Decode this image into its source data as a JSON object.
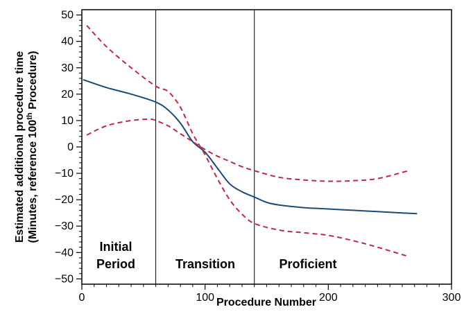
{
  "chart_data": {
    "type": "line",
    "xlabel": "Procedure Number",
    "ylabel_line1": "Estimated additional procedure time",
    "ylabel_line2_prefix": "(Minutes, reference 100",
    "ylabel_line2_sup": "th",
    "ylabel_line2_suffix": " Procedure)",
    "xlim": [
      0,
      300
    ],
    "ylim": [
      -52,
      52
    ],
    "x_ticks": [
      0,
      100,
      200,
      300
    ],
    "y_ticks": [
      50,
      40,
      30,
      20,
      10,
      0,
      -10,
      -20,
      -30,
      -40,
      -50
    ],
    "grid": false,
    "vertical_lines": [
      60,
      140
    ],
    "regions": [
      {
        "label": "Initial",
        "label2": "Period"
      },
      {
        "label": "Transition"
      },
      {
        "label": "Proficient"
      }
    ],
    "series": [
      {
        "style": "solid",
        "color": "#1a4a78",
        "x": [
          1,
          20,
          40,
          60,
          70,
          80,
          90,
          100,
          110,
          120,
          130,
          140,
          150,
          160,
          180,
          200,
          220,
          240,
          260,
          272
        ],
        "y": [
          25.5,
          22.5,
          20,
          17,
          14,
          9,
          2,
          -2,
          -8,
          -14,
          -17,
          -19,
          -21,
          -22,
          -23,
          -23.5,
          -24,
          -24.5,
          -25,
          -25.3
        ]
      },
      {
        "style": "dashed",
        "color": "#c0264a",
        "x": [
          4,
          20,
          40,
          60,
          70,
          80,
          90,
          100,
          110,
          120,
          130,
          140,
          160,
          180,
          200,
          220,
          240,
          265
        ],
        "y": [
          46,
          38,
          30,
          23,
          21,
          15,
          5,
          -3,
          -12,
          -20,
          -25.5,
          -29,
          -31.5,
          -32.5,
          -33.5,
          -35.5,
          -38,
          -41.5
        ]
      },
      {
        "style": "dashed",
        "color": "#c0264a",
        "x": [
          4,
          20,
          40,
          55,
          60,
          70,
          80,
          90,
          100,
          110,
          120,
          130,
          140,
          160,
          180,
          200,
          220,
          240,
          265
        ],
        "y": [
          4.5,
          8,
          10,
          10.5,
          10,
          8,
          5,
          2,
          -1,
          -3.5,
          -5.5,
          -7.5,
          -9,
          -11.5,
          -12.5,
          -13,
          -12.8,
          -12,
          -9
        ]
      }
    ]
  }
}
